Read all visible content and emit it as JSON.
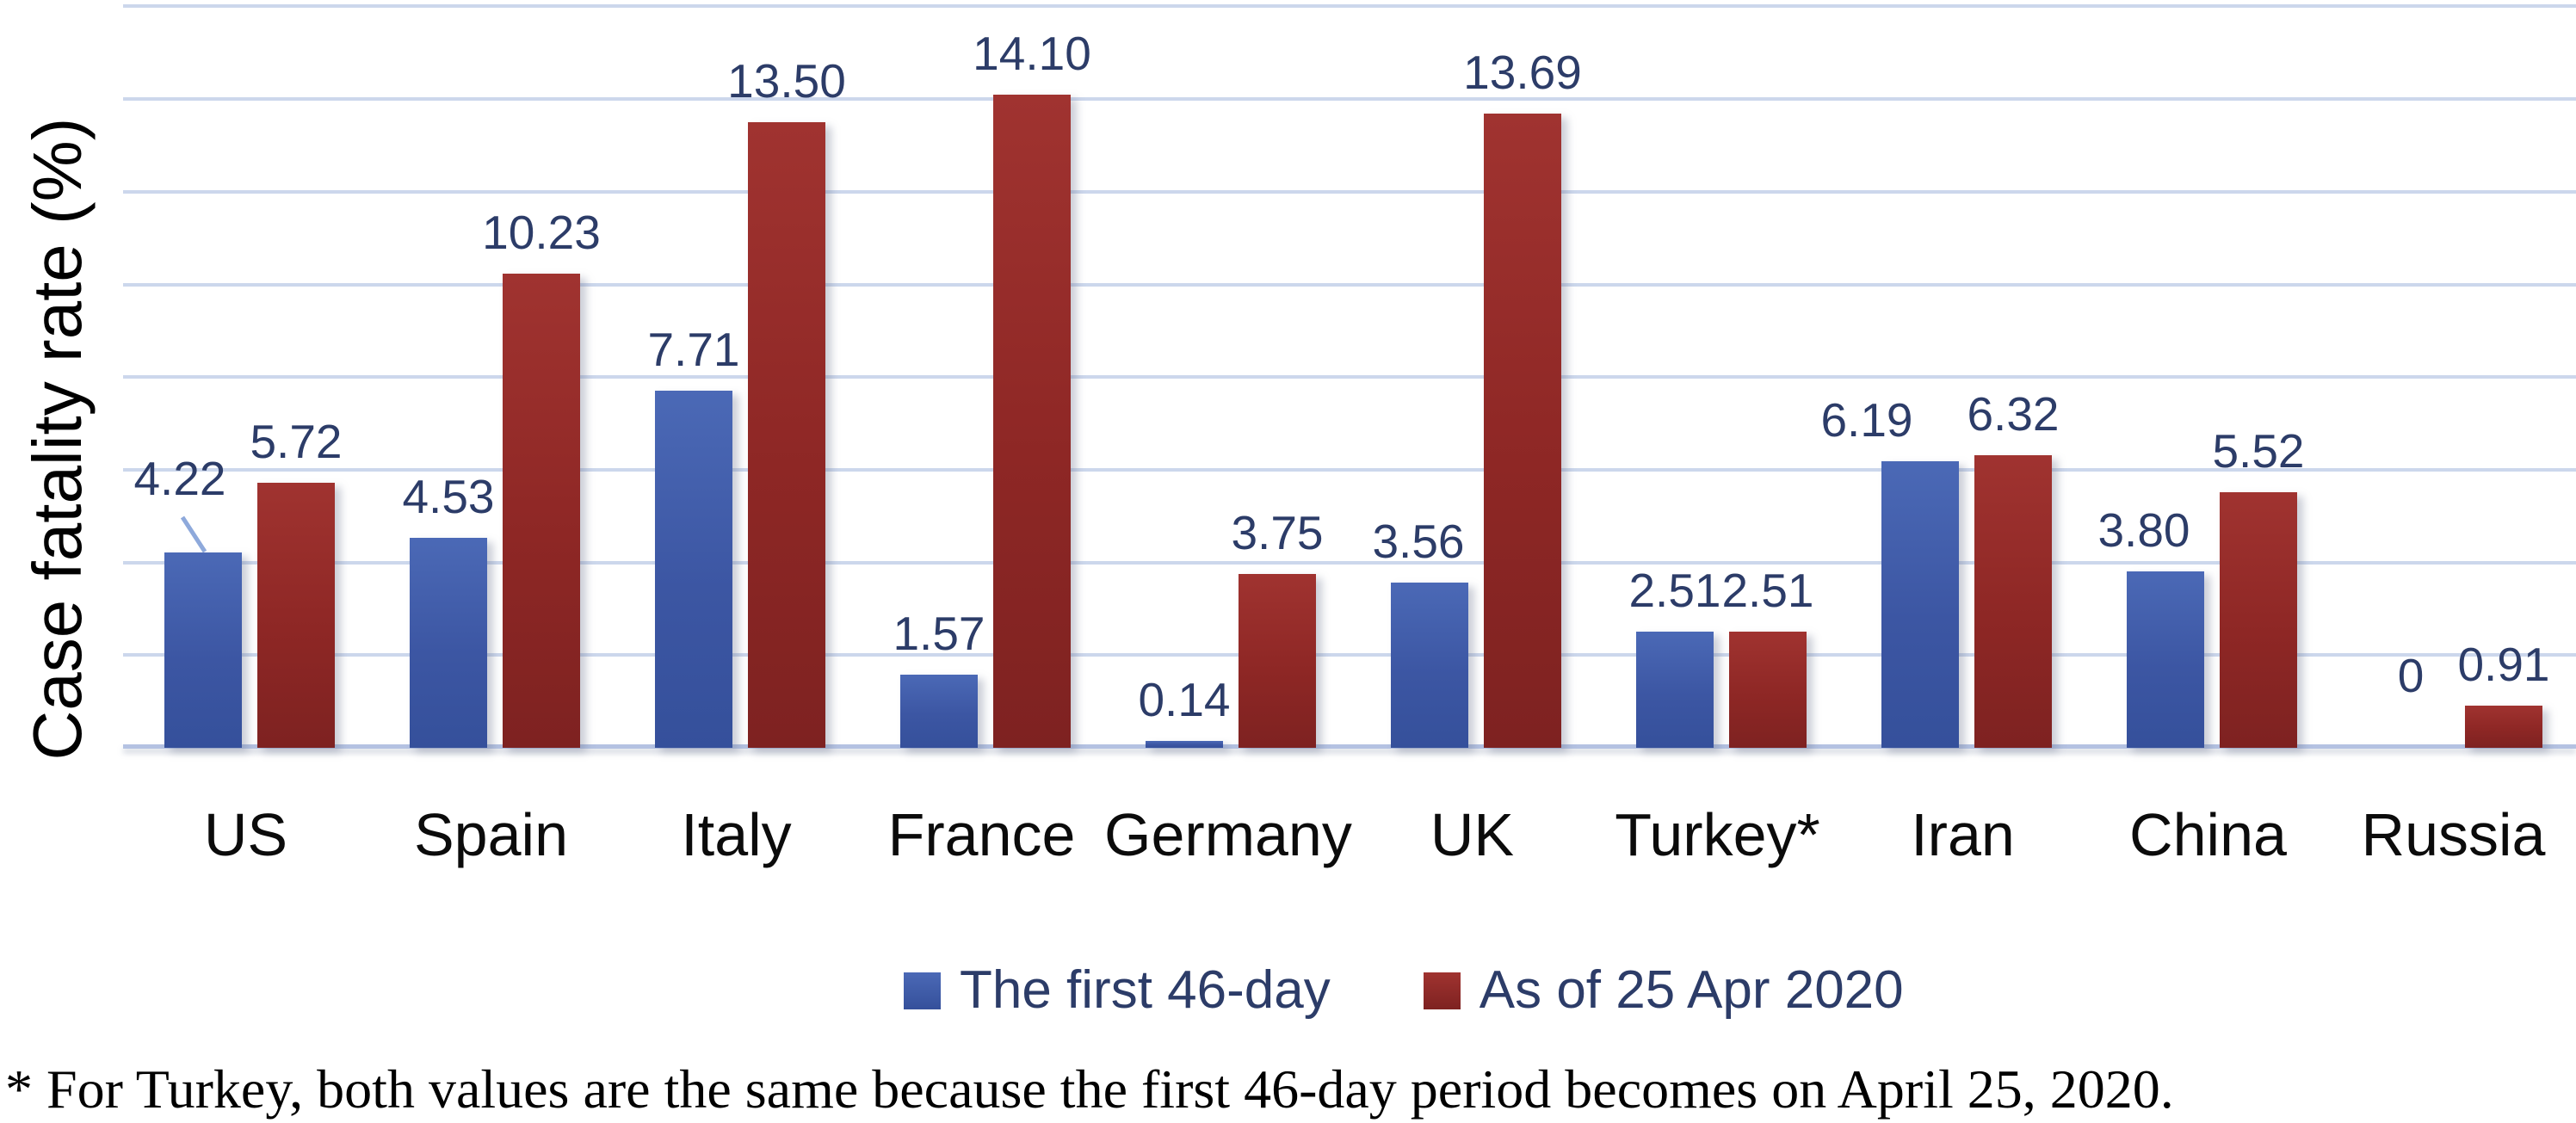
{
  "chart_data": {
    "type": "bar",
    "title": "",
    "xlabel": "",
    "ylabel": "Case fatality rate (%)",
    "categories": [
      "US",
      "Spain",
      "Italy",
      "France",
      "Germany",
      "UK",
      "Turkey*",
      "Iran",
      "China",
      "Russia"
    ],
    "series": [
      {
        "name": "The first 46-day",
        "color": "#3f5aa9",
        "values": [
          4.22,
          4.53,
          7.71,
          1.57,
          0.14,
          3.56,
          2.51,
          6.19,
          3.8,
          0
        ],
        "value_labels": [
          "4.22",
          "4.53",
          "7.71",
          "1.57",
          "0.14",
          "3.56",
          "2.51",
          "6.19",
          "3.80",
          "0"
        ]
      },
      {
        "name": "As of 25 Apr 2020",
        "color": "#8e2725",
        "values": [
          5.72,
          10.23,
          13.5,
          14.1,
          3.75,
          13.69,
          2.51,
          6.32,
          5.52,
          0.91
        ],
        "value_labels": [
          "5.72",
          "10.23",
          "13.50",
          "14.10",
          "3.75",
          "13.69",
          "2.51",
          "6.32",
          "5.52",
          "0.91"
        ]
      }
    ],
    "ylim": [
      0,
      16
    ],
    "gridline_step": 2,
    "grid": "horizontal",
    "legend_position": "bottom",
    "data_label_color": "#2c3c68",
    "gridline_color": "#ccd7ec",
    "callout": {
      "category": "US",
      "series": "The first 46-day",
      "leader_line_color": "#8ea9db"
    },
    "footnote": "* For Turkey, both values are the same because the first 46-day period becomes on April 25, 2020."
  }
}
